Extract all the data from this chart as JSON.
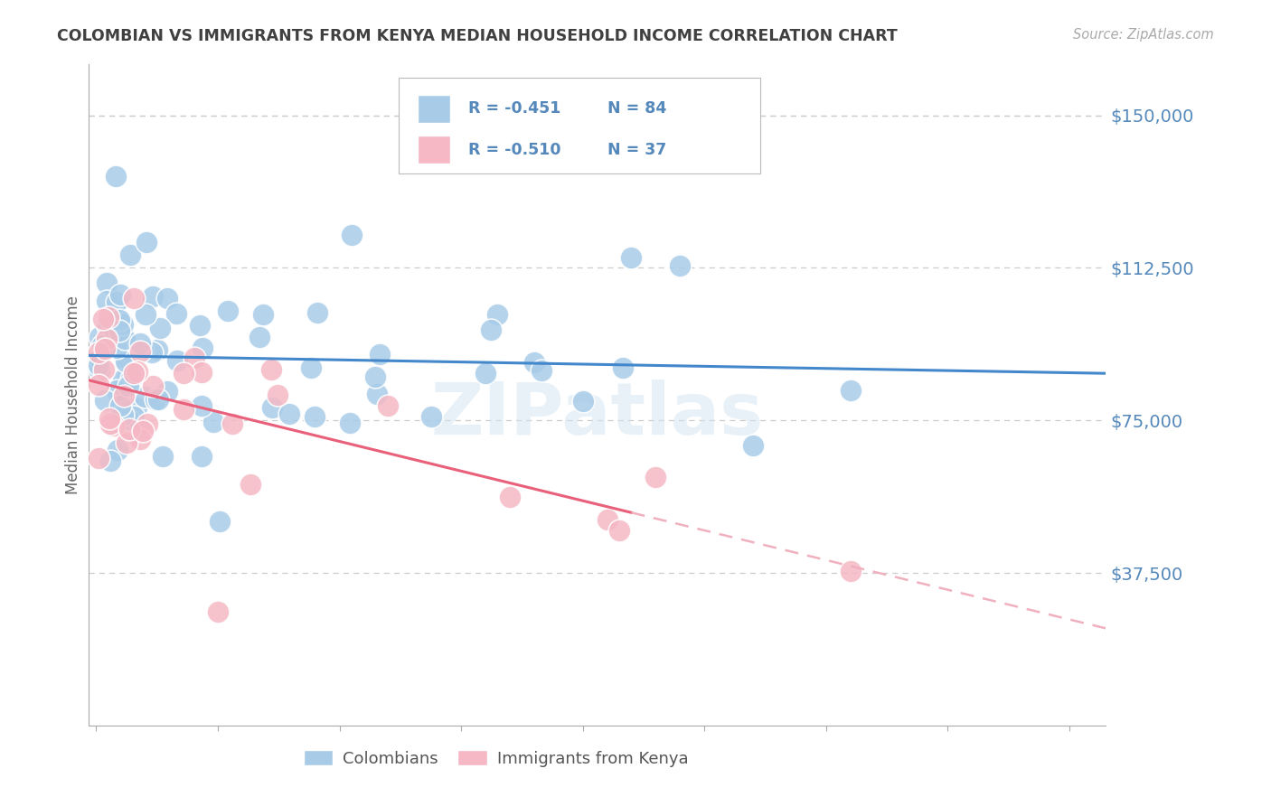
{
  "title": "COLOMBIAN VS IMMIGRANTS FROM KENYA MEDIAN HOUSEHOLD INCOME CORRELATION CHART",
  "source": "Source: ZipAtlas.com",
  "ylabel": "Median Household Income",
  "ytick_labels": [
    "$150,000",
    "$112,500",
    "$75,000",
    "$37,500"
  ],
  "ytick_values": [
    150000,
    112500,
    75000,
    37500
  ],
  "ymax": 162500,
  "ymin": 0,
  "xmin": -0.003,
  "xmax": 0.415,
  "watermark": "ZIPatlas",
  "legend_blue_r": "-0.451",
  "legend_blue_n": "84",
  "legend_pink_r": "-0.510",
  "legend_pink_n": "37",
  "legend_label_blue": "Colombians",
  "legend_label_pink": "Immigrants from Kenya",
  "blue_color": "#a8cce8",
  "pink_color": "#f5b8c4",
  "line_blue": "#4488cc",
  "line_pink": "#e8607a",
  "line_pink_dashed_color": "#f0b0be",
  "title_color": "#404040",
  "axis_label_color": "#5588bb",
  "grid_color": "#cccccc",
  "background_color": "#ffffff",
  "blue_intercept": 92000,
  "blue_slope": -65000,
  "pink_intercept": 88000,
  "pink_slope": -220000
}
